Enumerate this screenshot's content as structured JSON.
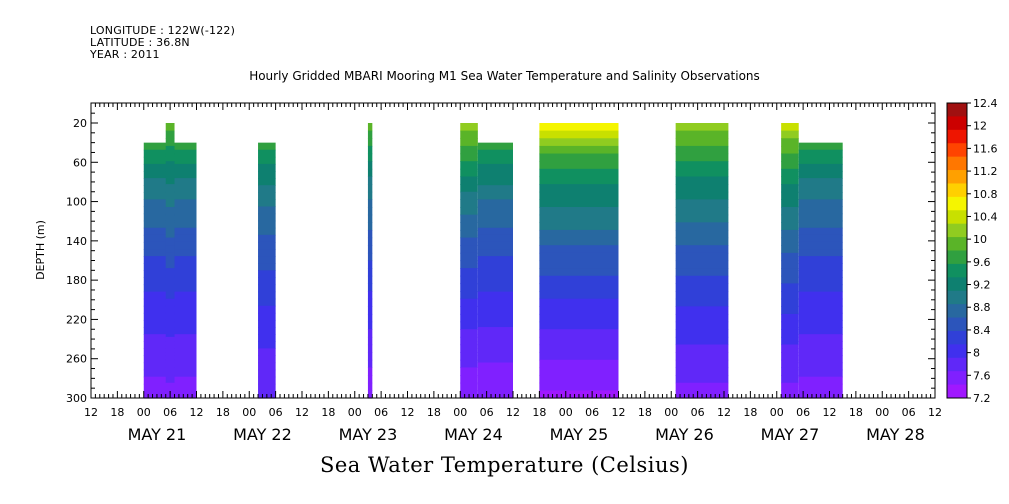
{
  "header": {
    "longitude": "LONGITUDE : 122W(-122)",
    "latitude": "LATITUDE : 36.8N",
    "year": "YEAR : 2011"
  },
  "chart_data": {
    "type": "heatmap",
    "title": "Hourly Gridded MBARI Mooring M1 Sea Water Temperature and Salinity Observations",
    "subtitle": "Sea Water Temperature (Celsius)",
    "ylabel": "DEPTH (m)",
    "xlabel": "",
    "y_inverted": true,
    "ylim": [
      300,
      0
    ],
    "y_ticks": [
      "20",
      "60",
      "100",
      "140",
      "180",
      "220",
      "260",
      "300"
    ],
    "x_range_hours": [
      -12,
      180
    ],
    "x_hour_ticks": [
      "12",
      "18",
      "00",
      "06",
      "12",
      "18",
      "00",
      "06",
      "12",
      "18",
      "00",
      "06",
      "12",
      "18",
      "00",
      "06",
      "12",
      "18",
      "00",
      "06",
      "12",
      "18",
      "00",
      "06",
      "12",
      "18",
      "00",
      "06",
      "12",
      "18",
      "00",
      "06",
      "12"
    ],
    "x_date_labels": [
      "MAY 21",
      "MAY 22",
      "MAY 23",
      "MAY 24",
      "MAY 25",
      "MAY 26",
      "MAY 27",
      "MAY 28"
    ],
    "colorbar": {
      "levels": [
        "12.4",
        "12",
        "11.6",
        "11.2",
        "10.8",
        "10.4",
        "10",
        "9.6",
        "9.2",
        "8.8",
        "8.4",
        "8",
        "7.6",
        "7.2"
      ],
      "colors": [
        "#a01010",
        "#cc0000",
        "#ee1500",
        "#ff4400",
        "#ff7700",
        "#ffa000",
        "#ffd000",
        "#f5f500",
        "#c8e000",
        "#90cc20",
        "#5ab428",
        "#30a040",
        "#109060",
        "#0e8070",
        "#207a88",
        "#2868a0",
        "#2c55bb",
        "#3040d8",
        "#4030ee",
        "#6028f8",
        "#8020ff",
        "#a018ff"
      ]
    },
    "segments": [
      {
        "x_start": 0,
        "x_end": 12,
        "top": 40,
        "bump": {
          "x_start": 5,
          "x_end": 7,
          "top": 20
        },
        "surface": 9.9,
        "bottom": 7.4
      },
      {
        "x_start": 26,
        "x_end": 30,
        "top": 40,
        "surface": 9.9,
        "bottom": 7.5
      },
      {
        "x_start": 51,
        "x_end": 52,
        "top": 20,
        "surface": 10.3,
        "bottom": 7.3
      },
      {
        "x_start": 72,
        "x_end": 76,
        "top": 20,
        "surface": 10.6,
        "bottom": 7.3
      },
      {
        "x_start": 76,
        "x_end": 84,
        "top": 40,
        "surface": 10.0,
        "bottom": 7.3
      },
      {
        "x_start": 90,
        "x_end": 108,
        "top": 20,
        "surface": 11.0,
        "bottom": 7.2
      },
      {
        "x_start": 121,
        "x_end": 133,
        "top": 20,
        "surface": 10.6,
        "bottom": 7.4
      },
      {
        "x_start": 145,
        "x_end": 149,
        "top": 20,
        "surface": 10.8,
        "bottom": 7.4
      },
      {
        "x_start": 149,
        "x_end": 159,
        "top": 40,
        "surface": 9.9,
        "bottom": 7.4
      }
    ]
  }
}
